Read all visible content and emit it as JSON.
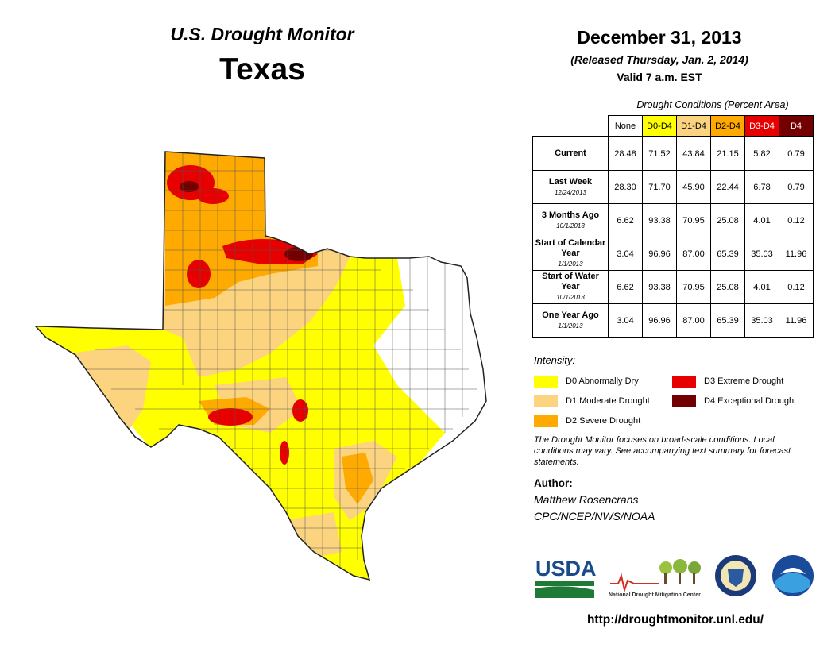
{
  "header": {
    "monitor_title": "U.S. Drought Monitor",
    "state": "Texas",
    "date": "December 31, 2013",
    "released": "(Released Thursday, Jan. 2, 2014)",
    "valid": "Valid 7 a.m. EST"
  },
  "table": {
    "caption": "Drought Conditions (Percent Area)",
    "columns": [
      "None",
      "D0-D4",
      "D1-D4",
      "D2-D4",
      "D3-D4",
      "D4"
    ],
    "column_colors": [
      "#ffffff",
      "#ffff00",
      "#fcd37f",
      "#ffaa00",
      "#e60000",
      "#730000"
    ],
    "rows": [
      {
        "label": "Current",
        "sublabel": "",
        "values": [
          "28.48",
          "71.52",
          "43.84",
          "21.15",
          "5.82",
          "0.79"
        ]
      },
      {
        "label": "Last Week",
        "sublabel": "12/24/2013",
        "values": [
          "28.30",
          "71.70",
          "45.90",
          "22.44",
          "6.78",
          "0.79"
        ]
      },
      {
        "label": "3 Months Ago",
        "sublabel": "10/1/2013",
        "values": [
          "6.62",
          "93.38",
          "70.95",
          "25.08",
          "4.01",
          "0.12"
        ]
      },
      {
        "label": "Start of Calendar Year",
        "sublabel": "1/1/2013",
        "values": [
          "3.04",
          "96.96",
          "87.00",
          "65.39",
          "35.03",
          "11.96"
        ]
      },
      {
        "label": "Start of Water Year",
        "sublabel": "10/1/2013",
        "values": [
          "6.62",
          "93.38",
          "70.95",
          "25.08",
          "4.01",
          "0.12"
        ]
      },
      {
        "label": "One Year Ago",
        "sublabel": "1/1/2013",
        "values": [
          "3.04",
          "96.96",
          "87.00",
          "65.39",
          "35.03",
          "11.96"
        ]
      }
    ]
  },
  "legend": {
    "title": "Intensity:",
    "items": [
      {
        "label": "D0 Abnormally Dry",
        "color": "#ffff00"
      },
      {
        "label": "D1 Moderate Drought",
        "color": "#fcd37f"
      },
      {
        "label": "D2 Severe Drought",
        "color": "#ffaa00"
      },
      {
        "label": "D3 Extreme Drought",
        "color": "#e60000"
      },
      {
        "label": "D4 Exceptional Drought",
        "color": "#730000"
      }
    ]
  },
  "note": "The Drought Monitor focuses on broad-scale conditions. Local conditions may vary. See accompanying text summary for forecast statements.",
  "author": {
    "label": "Author:",
    "name": "Matthew Rosencrans",
    "org": "CPC/NCEP/NWS/NOAA"
  },
  "logos": {
    "usda": "USDA",
    "ndmc": "National Drought Mitigation Center"
  },
  "url": "http://droughtmonitor.unl.edu/"
}
